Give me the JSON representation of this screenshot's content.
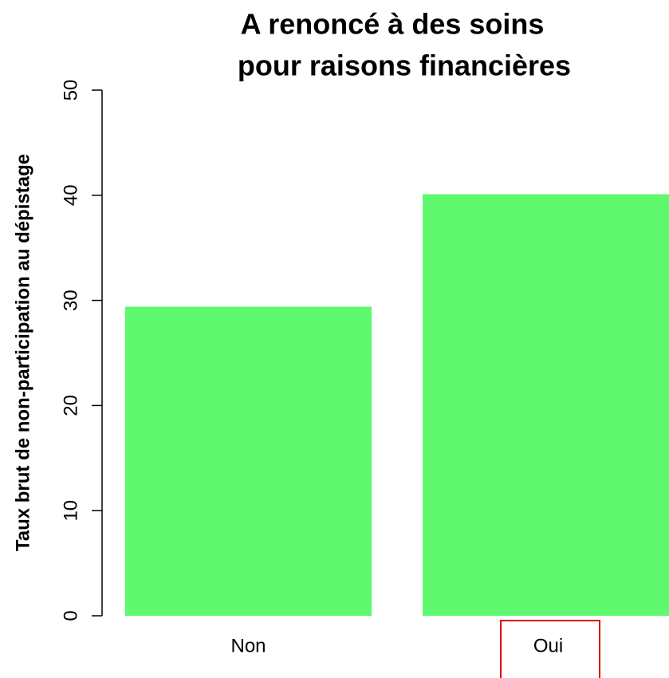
{
  "chart_data": {
    "type": "bar",
    "title": [
      "A renoncé à des soins",
      "pour raisons financières"
    ],
    "y_label": "Taux brut de non-participation au dépistage",
    "categories": [
      "Non",
      "Oui"
    ],
    "values": [
      29.4,
      40.1
    ],
    "color": "#5ef96e",
    "ylim": [
      0,
      50
    ],
    "yticks": [
      0,
      10,
      20,
      30,
      40,
      50
    ]
  }
}
